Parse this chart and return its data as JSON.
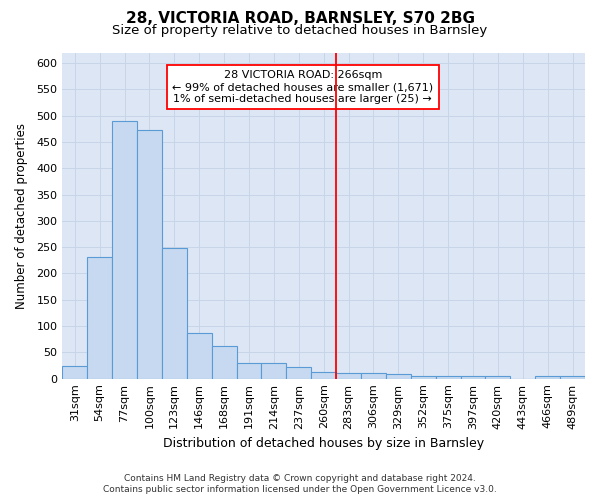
{
  "title": "28, VICTORIA ROAD, BARNSLEY, S70 2BG",
  "subtitle": "Size of property relative to detached houses in Barnsley",
  "xlabel": "Distribution of detached houses by size in Barnsley",
  "ylabel": "Number of detached properties",
  "footer_line1": "Contains HM Land Registry data © Crown copyright and database right 2024.",
  "footer_line2": "Contains public sector information licensed under the Open Government Licence v3.0.",
  "categories": [
    "31sqm",
    "54sqm",
    "77sqm",
    "100sqm",
    "123sqm",
    "146sqm",
    "168sqm",
    "191sqm",
    "214sqm",
    "237sqm",
    "260sqm",
    "283sqm",
    "306sqm",
    "329sqm",
    "352sqm",
    "375sqm",
    "397sqm",
    "420sqm",
    "443sqm",
    "466sqm",
    "489sqm"
  ],
  "values": [
    25,
    232,
    490,
    472,
    249,
    87,
    63,
    30,
    30,
    22,
    12,
    10,
    10,
    8,
    5,
    5,
    5,
    6,
    0,
    5,
    5
  ],
  "bar_color": "#c6d9f0",
  "bar_edge_color": "#5b9bd5",
  "vline_x": 10.5,
  "annotation_line1": "28 VICTORIA ROAD: 266sqm",
  "annotation_line2": "← 99% of detached houses are smaller (1,671)",
  "annotation_line3": "1% of semi-detached houses are larger (25) →",
  "ylim": [
    0,
    620
  ],
  "yticks": [
    0,
    50,
    100,
    150,
    200,
    250,
    300,
    350,
    400,
    450,
    500,
    550,
    600
  ],
  "grid_color": "#c8d4e8",
  "plot_bg_color": "#dce6f5",
  "fig_bg_color": "#ffffff"
}
